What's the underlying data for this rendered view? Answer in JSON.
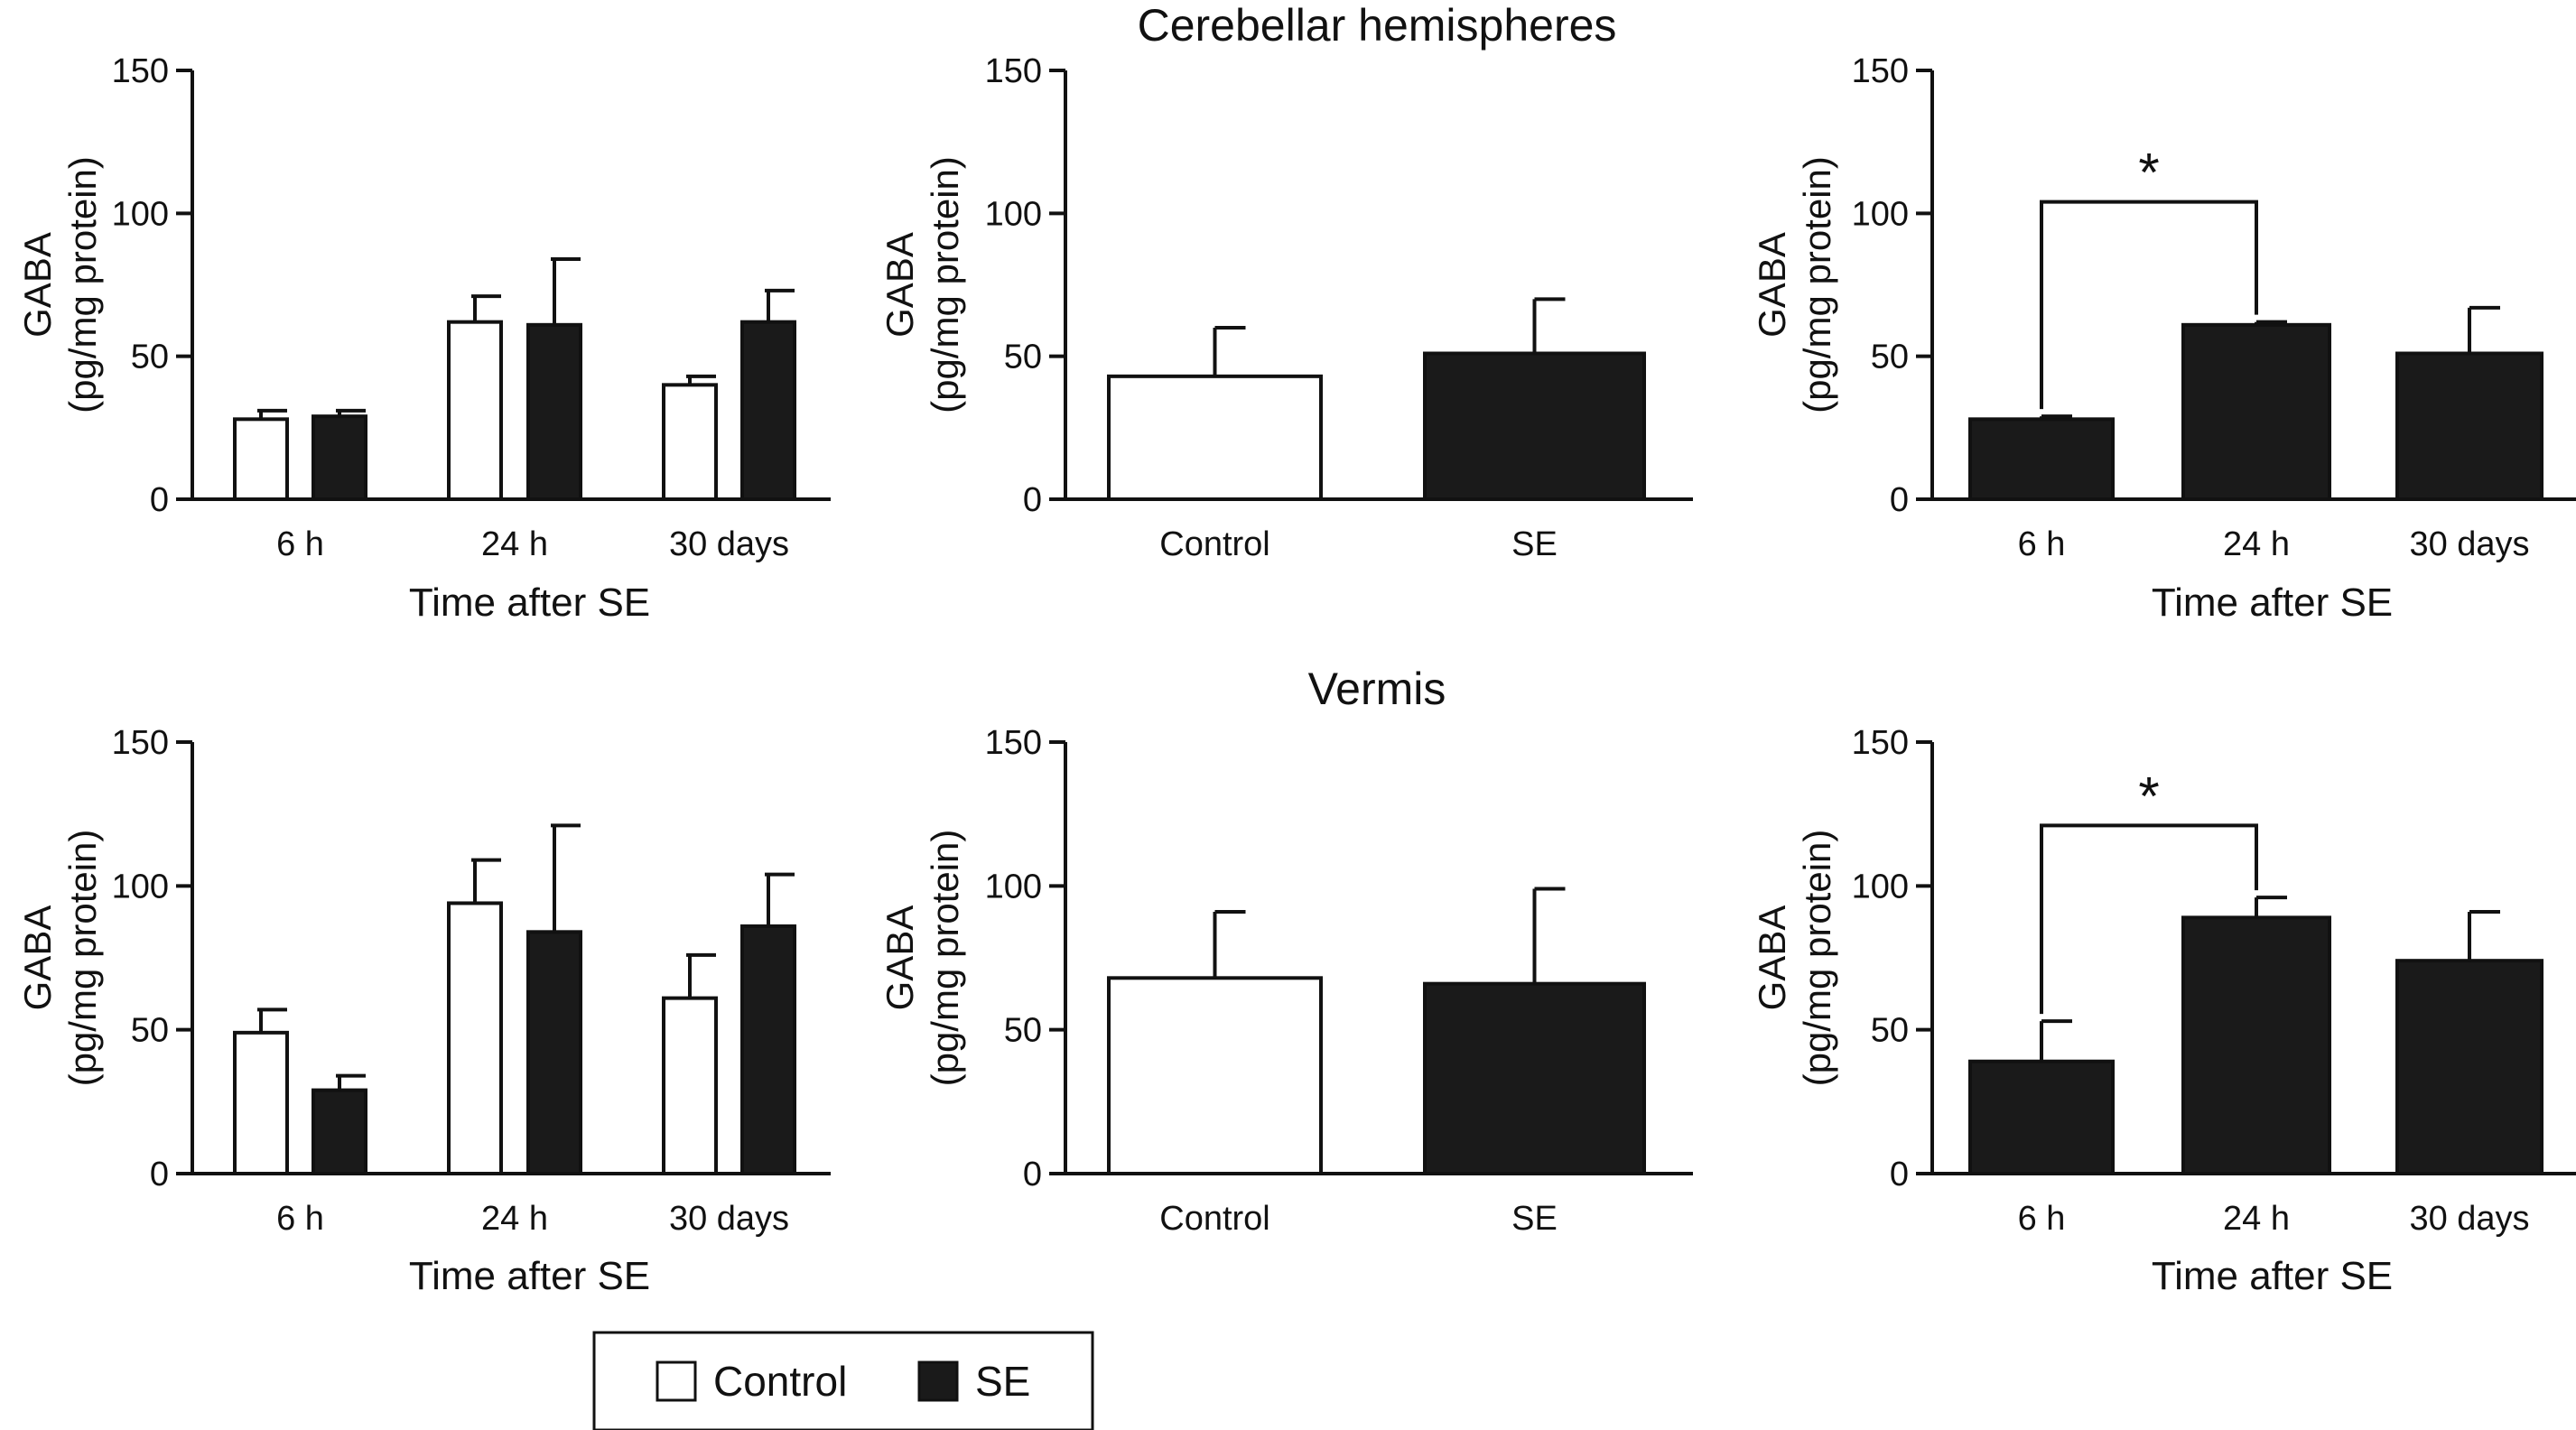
{
  "row_titles": {
    "top": "Cerebellar hemispheres",
    "bottom": "Vermis"
  },
  "legend": {
    "items": [
      {
        "label": "Control",
        "fill": "#ffffff"
      },
      {
        "label": "SE",
        "fill": "#1a1a1a"
      }
    ]
  },
  "colors": {
    "control": "#ffffff",
    "se": "#1a1a1a",
    "axis": "#111111"
  },
  "chart_data": [
    {
      "id": "hemi-time",
      "type": "bar",
      "row": "Cerebellar hemispheres",
      "categories": [
        "6 h",
        "24 h",
        "30 days"
      ],
      "series": [
        {
          "name": "Control",
          "values": [
            28,
            62,
            40
          ],
          "errors": [
            3,
            9,
            3
          ]
        },
        {
          "name": "SE",
          "values": [
            29,
            61,
            62
          ],
          "errors": [
            2,
            23,
            11
          ]
        }
      ],
      "xlabel": "Time after SE",
      "ylabel_line1": "GABA",
      "ylabel_line2": "(pg/mg protein)",
      "ylim": [
        0,
        150
      ],
      "yticks": [
        0,
        50,
        100,
        150
      ]
    },
    {
      "id": "hemi-overall",
      "type": "bar",
      "row": "Cerebellar hemispheres",
      "categories": [
        "Control",
        "SE"
      ],
      "values": [
        43,
        51
      ],
      "errors": [
        17,
        19
      ],
      "fills": [
        "control",
        "se"
      ],
      "xlabel": "",
      "ylabel_line1": "GABA",
      "ylabel_line2": "(pg/mg protein)",
      "ylim": [
        0,
        150
      ],
      "yticks": [
        0,
        50,
        100,
        150
      ]
    },
    {
      "id": "hemi-se",
      "type": "bar",
      "row": "Cerebellar hemispheres",
      "categories": [
        "6 h",
        "24 h",
        "30 days"
      ],
      "values": [
        28,
        61,
        51
      ],
      "errors": [
        1,
        1,
        16
      ],
      "fills": [
        "se",
        "se",
        "se"
      ],
      "xlabel": "Time after SE",
      "ylabel_line1": "GABA",
      "ylabel_line2": "(pg/mg protein)",
      "ylim": [
        0,
        150
      ],
      "yticks": [
        0,
        50,
        100,
        150
      ],
      "significance": {
        "from": 0,
        "to": 1,
        "level": 104,
        "label": "*"
      }
    },
    {
      "id": "vermis-time",
      "type": "bar",
      "row": "Vermis",
      "categories": [
        "6 h",
        "24 h",
        "30 days"
      ],
      "series": [
        {
          "name": "Control",
          "values": [
            49,
            94,
            61
          ],
          "errors": [
            8,
            15,
            15
          ]
        },
        {
          "name": "SE",
          "values": [
            29,
            84,
            86
          ],
          "errors": [
            5,
            37,
            18
          ]
        }
      ],
      "xlabel": "Time after SE",
      "ylabel_line1": "GABA",
      "ylabel_line2": "(pg/mg protein)",
      "ylim": [
        0,
        150
      ],
      "yticks": [
        0,
        50,
        100,
        150
      ]
    },
    {
      "id": "vermis-overall",
      "type": "bar",
      "row": "Vermis",
      "categories": [
        "Control",
        "SE"
      ],
      "values": [
        68,
        66
      ],
      "errors": [
        23,
        33
      ],
      "fills": [
        "control",
        "se"
      ],
      "xlabel": "",
      "ylabel_line1": "GABA",
      "ylabel_line2": "(pg/mg protein)",
      "ylim": [
        0,
        150
      ],
      "yticks": [
        0,
        50,
        100,
        150
      ]
    },
    {
      "id": "vermis-se",
      "type": "bar",
      "row": "Vermis",
      "categories": [
        "6 h",
        "24 h",
        "30 days"
      ],
      "values": [
        39,
        89,
        74
      ],
      "errors": [
        14,
        7,
        17
      ],
      "fills": [
        "se",
        "se",
        "se"
      ],
      "xlabel": "Time after SE",
      "ylabel_line1": "GABA",
      "ylabel_line2": "(pg/mg protein)",
      "ylim": [
        0,
        150
      ],
      "yticks": [
        0,
        50,
        100,
        150
      ],
      "significance": {
        "from": 0,
        "to": 1,
        "level": 121,
        "label": "*"
      }
    }
  ]
}
